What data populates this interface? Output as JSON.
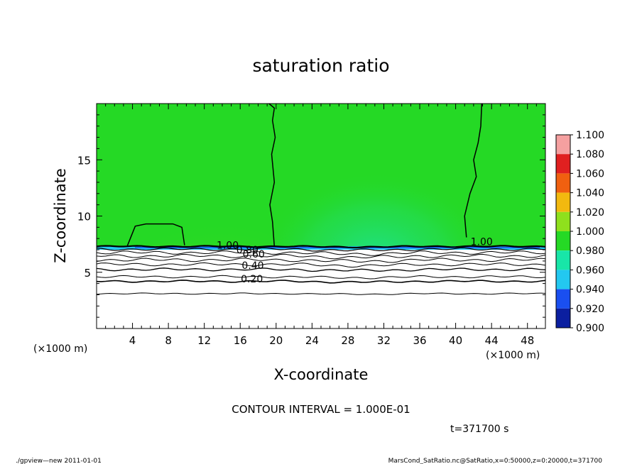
{
  "chart_data": {
    "type": "heatmap",
    "title": "saturation ratio",
    "xlabel": "X-coordinate",
    "ylabel": "Z-coordinate",
    "x_unit": "(×1000 m)",
    "y_unit": "(×1000 m)",
    "xlim": [
      0,
      50
    ],
    "ylim": [
      0,
      20
    ],
    "x_ticks": [
      4,
      8,
      12,
      16,
      20,
      24,
      28,
      32,
      36,
      40,
      44,
      48
    ],
    "y_ticks": [
      5,
      10,
      15
    ],
    "colorbar": {
      "levels": [
        "0.900",
        "0.920",
        "0.940",
        "0.960",
        "0.980",
        "1.000",
        "1.020",
        "1.040",
        "1.060",
        "1.080",
        "1.100"
      ],
      "colors": [
        "#6a1fb0",
        "#0b1fa0",
        "#1a4ff0",
        "#23c8f0",
        "#18e6a8",
        "#25d925",
        "#8fe01d",
        "#f2b90f",
        "#f06010",
        "#e02020",
        "#f5a0a0"
      ]
    },
    "field": {
      "top_layer_value": 1.0,
      "boundary_height_km": 7.3,
      "below_boundary": "unsaturated (white)"
    },
    "contour_labels": [
      {
        "text": "1.00",
        "x": 14.6,
        "y": 7.1
      },
      {
        "text": "0.80",
        "x": 16.8,
        "y": 6.7
      },
      {
        "text": "0.60",
        "x": 17.5,
        "y": 6.3
      },
      {
        "text": "0.40",
        "x": 17.4,
        "y": 5.3
      },
      {
        "text": "0.20",
        "x": 17.3,
        "y": 4.1
      },
      {
        "text": "1.00",
        "x": 42.9,
        "y": 7.4
      }
    ],
    "contour_interval": "CONTOUR INTERVAL = 1.000E-01",
    "time": "t=371700 s"
  },
  "footer": {
    "left": "./gpview—new  2011-01-01",
    "right": "MarsCond_SatRatio.nc@SatRatio,x=0:50000,z=0:20000,t=371700"
  }
}
